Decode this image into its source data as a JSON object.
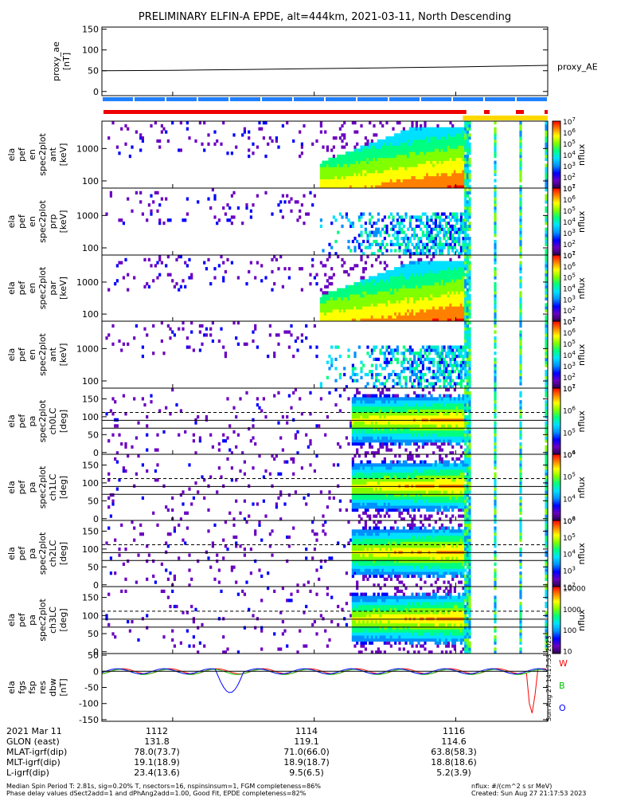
{
  "figure": {
    "title": "PRELIMINARY ELFIN-A EPDE, alt=444km, 2021-03-11, North Descending",
    "stamp": "Sun Aug 27 14:17:53 2023",
    "footer": [
      "Median Spin Period T: 2.81s, sig=0.20% T, nsectors=16, nspinsinsum=1, FGM completeness=86%",
      "Phase delay values dSect2add=1 and dPhAng2add=1.00, Good Fit, EPDE completeness=82%"
    ],
    "footer_right": [
      "nflux: #/(cm^2 s sr MeV)",
      "Created: Sun Aug 27 21:17:53 2023"
    ]
  },
  "ephemeris": {
    "date_label": "2021 Mar 11",
    "row_labels": [
      "GLON (east)",
      "MLAT-igrf(dip)",
      "MLT-igrf(dip)",
      "L-igrf(dip)"
    ],
    "columns": [
      {
        "time": "1112",
        "values": [
          "131.8",
          "78.0(73.7)",
          "19.1(18.9)",
          "23.4(13.6)"
        ]
      },
      {
        "time": "1114",
        "values": [
          "119.1",
          "71.0(66.0)",
          "18.9(18.7)",
          "9.5(6.5)"
        ]
      },
      {
        "time": "1116",
        "values": [
          "114.6",
          "63.8(58.3)",
          "18.8(18.6)",
          "5.2(3.9)"
        ]
      }
    ]
  },
  "chart_data": {
    "type": "heatmap",
    "x_range": [
      1111.0,
      1117.3
    ],
    "x_ticks": [
      1112,
      1114,
      1116
    ],
    "panels": [
      {
        "id": "proxy_ae",
        "kind": "line",
        "ylabel": [
          "proxy_ae",
          "[nT]"
        ],
        "ylim": [
          -10,
          155
        ],
        "yticks": [
          0,
          50,
          100,
          150
        ],
        "line": {
          "x": [
            1111.0,
            1112.0,
            1113.0,
            1114.0,
            1115.0,
            1116.0,
            1117.0,
            1117.3
          ],
          "y": [
            50,
            51,
            53,
            55,
            57,
            59,
            62,
            63
          ]
        },
        "legend": "proxy_AE"
      },
      {
        "id": "ef_en_ant",
        "kind": "spectrogram",
        "ylabel": [
          "ela",
          "pef",
          "en",
          "spec2plot",
          "ant",
          "[keV]"
        ],
        "log_y": true,
        "ylim": [
          60,
          7000
        ],
        "yticks": [
          100,
          1000
        ],
        "colorbar": {
          "label": "nflux",
          "min_exp": 1,
          "max_exp": 7
        }
      },
      {
        "id": "ef_en_perp",
        "kind": "spectrogram",
        "ylabel": [
          "ela",
          "pef",
          "en",
          "spec2plot",
          "prp",
          "[keV]"
        ],
        "log_y": true,
        "ylim": [
          60,
          7000
        ],
        "yticks": [
          100,
          1000
        ],
        "colorbar": {
          "label": "nflux",
          "min_exp": 1,
          "max_exp": 7
        }
      },
      {
        "id": "ef_en_para",
        "kind": "spectrogram",
        "ylabel": [
          "ela",
          "pef",
          "en",
          "spec2plot",
          "par",
          "[keV]"
        ],
        "log_y": true,
        "ylim": [
          60,
          7000
        ],
        "yticks": [
          100,
          1000
        ],
        "colorbar": {
          "label": "nflux",
          "min_exp": 1,
          "max_exp": 7
        }
      },
      {
        "id": "ef_en_ratio",
        "kind": "spectrogram",
        "ylabel": [
          "ela",
          "pef",
          "en",
          "spec2plot",
          "ant",
          "[keV]"
        ],
        "log_y": true,
        "ylim": [
          60,
          7000
        ],
        "yticks": [
          100,
          1000
        ],
        "colorbar": {
          "label": "nflux",
          "min_exp": 1,
          "max_exp": 7
        }
      },
      {
        "id": "pa_ch0",
        "kind": "spectrogram",
        "ylabel": [
          "ela",
          "pef",
          "pa",
          "spec2plot",
          "ch0LC",
          "[deg]"
        ],
        "log_y": false,
        "ylim": [
          -5,
          180
        ],
        "yticks": [
          0,
          50,
          100,
          150
        ],
        "colorbar": {
          "label": "nflux",
          "min_exp": 4,
          "max_exp": 7
        }
      },
      {
        "id": "pa_ch1",
        "kind": "spectrogram",
        "ylabel": [
          "ela",
          "pef",
          "pa",
          "spec2plot",
          "ch1LC",
          "[deg]"
        ],
        "log_y": false,
        "ylim": [
          -5,
          180
        ],
        "yticks": [
          0,
          50,
          100,
          150
        ],
        "colorbar": {
          "label": "nflux",
          "min_exp": 3,
          "max_exp": 6
        }
      },
      {
        "id": "pa_ch2",
        "kind": "spectrogram",
        "ylabel": [
          "ela",
          "pef",
          "pa",
          "spec2plot",
          "ch2LC",
          "[deg]"
        ],
        "log_y": false,
        "ylim": [
          -5,
          180
        ],
        "yticks": [
          0,
          50,
          100,
          150
        ],
        "colorbar": {
          "label": "nflux",
          "min_exp": 2,
          "max_exp": 6
        }
      },
      {
        "id": "pa_ch3",
        "kind": "spectrogram",
        "ylabel": [
          "ela",
          "pef",
          "pa",
          "spec2plot",
          "ch3LC",
          "[deg]"
        ],
        "log_y": false,
        "ylim": [
          -5,
          180
        ],
        "yticks": [
          0,
          50,
          100,
          150
        ],
        "colorbar": {
          "label": "nflux",
          "ticks": [
            "10",
            "100",
            "1000",
            "10000"
          ]
        }
      },
      {
        "id": "fgs_res",
        "kind": "line",
        "ylabel": [
          "ela",
          "fgs",
          "fsp",
          "res",
          "dbw",
          "[nT]"
        ],
        "ylim": [
          -155,
          55
        ],
        "yticks": [
          -150,
          -100,
          -50,
          0,
          50
        ],
        "legend_letters": [
          "W",
          "B",
          "O"
        ],
        "legend_colors": [
          "#ff0000",
          "#00c000",
          "#0000ff"
        ]
      }
    ],
    "lc_angles_deg": [
      68,
      90,
      112
    ],
    "quality_bars": {
      "blue_segments": 14,
      "red_gaps": [
        [
          1116.15,
          1116.45
        ],
        [
          1116.55,
          1116.85
        ],
        [
          1116.95,
          1117.2
        ]
      ],
      "yellow_start": 1116.1
    }
  },
  "colors": {
    "colorbar_stops": [
      "#ffffff",
      "#2a0050",
      "#6a00c0",
      "#0000ff",
      "#0090ff",
      "#00e0ff",
      "#00ff80",
      "#80ff00",
      "#ffff00",
      "#ff8000",
      "#ff0000"
    ],
    "blue_bar": "#2080ff",
    "red_bar": "#ee0000",
    "yellow_bar": "#ffd800"
  }
}
